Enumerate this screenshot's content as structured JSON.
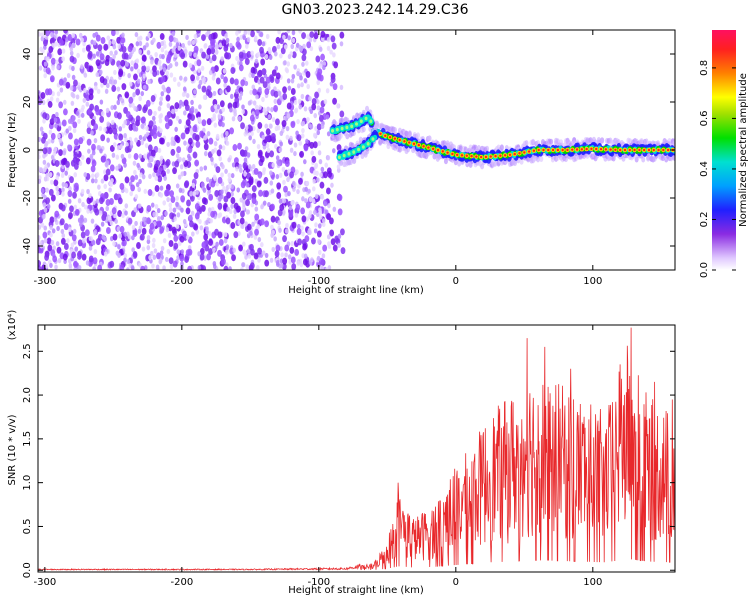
{
  "title": "GN03.2023.242.14.29.C36",
  "chart_data": [
    {
      "type": "heatmap",
      "xlabel": "Height of straight line (km)",
      "ylabel": "Frequency (Hz)",
      "xlim": [
        -305,
        160
      ],
      "ylim": [
        -50,
        50
      ],
      "xticks": [
        -300,
        -200,
        -100,
        0,
        100
      ],
      "yticks": [
        -40,
        -20,
        0,
        20,
        40
      ],
      "colorbar": {
        "label": "Normalized spectral amplitude",
        "range": [
          0,
          0.95
        ],
        "ticks": [
          "0.0",
          "0.2",
          "0.4",
          "0.6",
          "0.8"
        ],
        "tick_values": [
          0,
          0.2,
          0.4,
          0.6,
          0.8
        ]
      },
      "ridge": [
        {
          "x": -90,
          "y": 8
        },
        {
          "x": -75,
          "y": 10
        },
        {
          "x": -63,
          "y": 14
        },
        {
          "x": -60,
          "y": 8
        },
        {
          "x": -52,
          "y": 6
        },
        {
          "x": -40,
          "y": 4
        },
        {
          "x": -20,
          "y": 1
        },
        {
          "x": 0,
          "y": -2
        },
        {
          "x": 20,
          "y": -3
        },
        {
          "x": 40,
          "y": -2
        },
        {
          "x": 60,
          "y": 0
        },
        {
          "x": 80,
          "y": 0
        },
        {
          "x": 100,
          "y": 0.5
        },
        {
          "x": 120,
          "y": 0
        },
        {
          "x": 140,
          "y": 0
        },
        {
          "x": 160,
          "y": 0
        }
      ],
      "ridge_lower": [
        {
          "x": -85,
          "y": -3
        },
        {
          "x": -75,
          "y": -1
        },
        {
          "x": -65,
          "y": 2
        },
        {
          "x": -58,
          "y": 6
        }
      ],
      "noise_region": {
        "x": [
          -305,
          -80
        ],
        "y": [
          -50,
          50
        ]
      }
    },
    {
      "type": "line",
      "xlabel": "Height of straight line (km)",
      "ylabel": "SNR (10 * v/v)",
      "y_multiplier": "(x10⁴)",
      "xlim": [
        -305,
        160
      ],
      "ylim": [
        -0.02,
        2.8
      ],
      "xticks": [
        -300,
        -200,
        -100,
        0,
        100
      ],
      "yticks": [
        "0.0",
        "0.5",
        "1.0",
        "1.5",
        "2.0",
        "2.5"
      ],
      "ytick_values": [
        0,
        0.5,
        1.0,
        1.5,
        2.0,
        2.5
      ],
      "series": [
        {
          "color": "#e8282b",
          "envelope": [
            {
              "x": -305,
              "y": 0.01
            },
            {
              "x": -150,
              "y": 0.01
            },
            {
              "x": -80,
              "y": 0.02
            },
            {
              "x": -60,
              "y": 0.08
            },
            {
              "x": -50,
              "y": 0.35
            },
            {
              "x": -42,
              "y": 0.9
            },
            {
              "x": -30,
              "y": 0.6
            },
            {
              "x": -15,
              "y": 0.8
            },
            {
              "x": 0,
              "y": 1.2
            },
            {
              "x": 10,
              "y": 1.4
            },
            {
              "x": 25,
              "y": 1.8
            },
            {
              "x": 40,
              "y": 2.0
            },
            {
              "x": 55,
              "y": 2.3
            },
            {
              "x": 70,
              "y": 2.2
            },
            {
              "x": 90,
              "y": 2.0
            },
            {
              "x": 110,
              "y": 1.8
            },
            {
              "x": 125,
              "y": 2.6
            },
            {
              "x": 140,
              "y": 2.0
            },
            {
              "x": 160,
              "y": 1.8
            }
          ],
          "spikes": [
            {
              "x": -42,
              "y": 1.0
            },
            {
              "x": 52,
              "y": 2.65
            },
            {
              "x": 65,
              "y": 2.55
            },
            {
              "x": 128,
              "y": 2.77
            },
            {
              "x": 120,
              "y": 2.35
            },
            {
              "x": 84,
              "y": 2.3
            },
            {
              "x": 145,
              "y": 2.15
            },
            {
              "x": 158,
              "y": 1.95
            }
          ]
        }
      ]
    }
  ]
}
